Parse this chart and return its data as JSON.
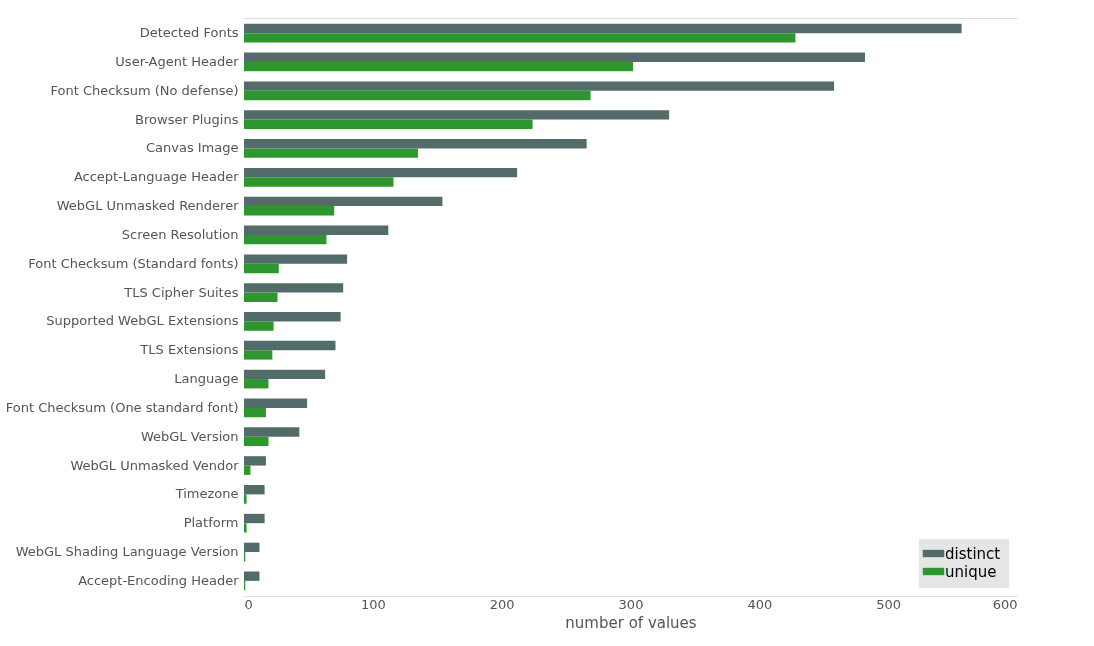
{
  "chart_data": {
    "type": "bar",
    "orientation": "horizontal",
    "xlabel": "number of values",
    "categories": [
      "Detected Fonts",
      "User-Agent Header",
      "Font Checksum (No defense)",
      "Browser Plugins",
      "Canvas Image",
      "Accept-Language Header",
      "WebGL Unmasked Renderer",
      "Screen Resolution",
      "Font Checksum (Standard fonts)",
      "TLS Cipher Suites",
      "Supported WebGL Extensions",
      "TLS Extensions",
      "Language",
      "Font Checksum (One standard font)",
      "WebGL Version",
      "WebGL Unmasked Vendor",
      "Timezone",
      "Platform",
      "WebGL Shading Language Version",
      "Accept-Encoding Header"
    ],
    "series": [
      {
        "name": "distinct",
        "color": "#536c6a",
        "values": [
          557,
          482,
          458,
          330,
          266,
          212,
          154,
          112,
          80,
          77,
          75,
          71,
          63,
          49,
          43,
          17,
          16,
          16,
          12,
          12
        ]
      },
      {
        "name": "unique",
        "color": "#2e962e",
        "values": [
          428,
          302,
          269,
          224,
          135,
          116,
          70,
          64,
          27,
          26,
          23,
          22,
          19,
          17,
          19,
          5,
          2,
          2,
          1,
          1
        ]
      }
    ],
    "xlim": [
      0,
      600
    ],
    "xticks": [
      0,
      100,
      200,
      300,
      400,
      500,
      600
    ],
    "grid": "x",
    "legend": "bottom right"
  }
}
